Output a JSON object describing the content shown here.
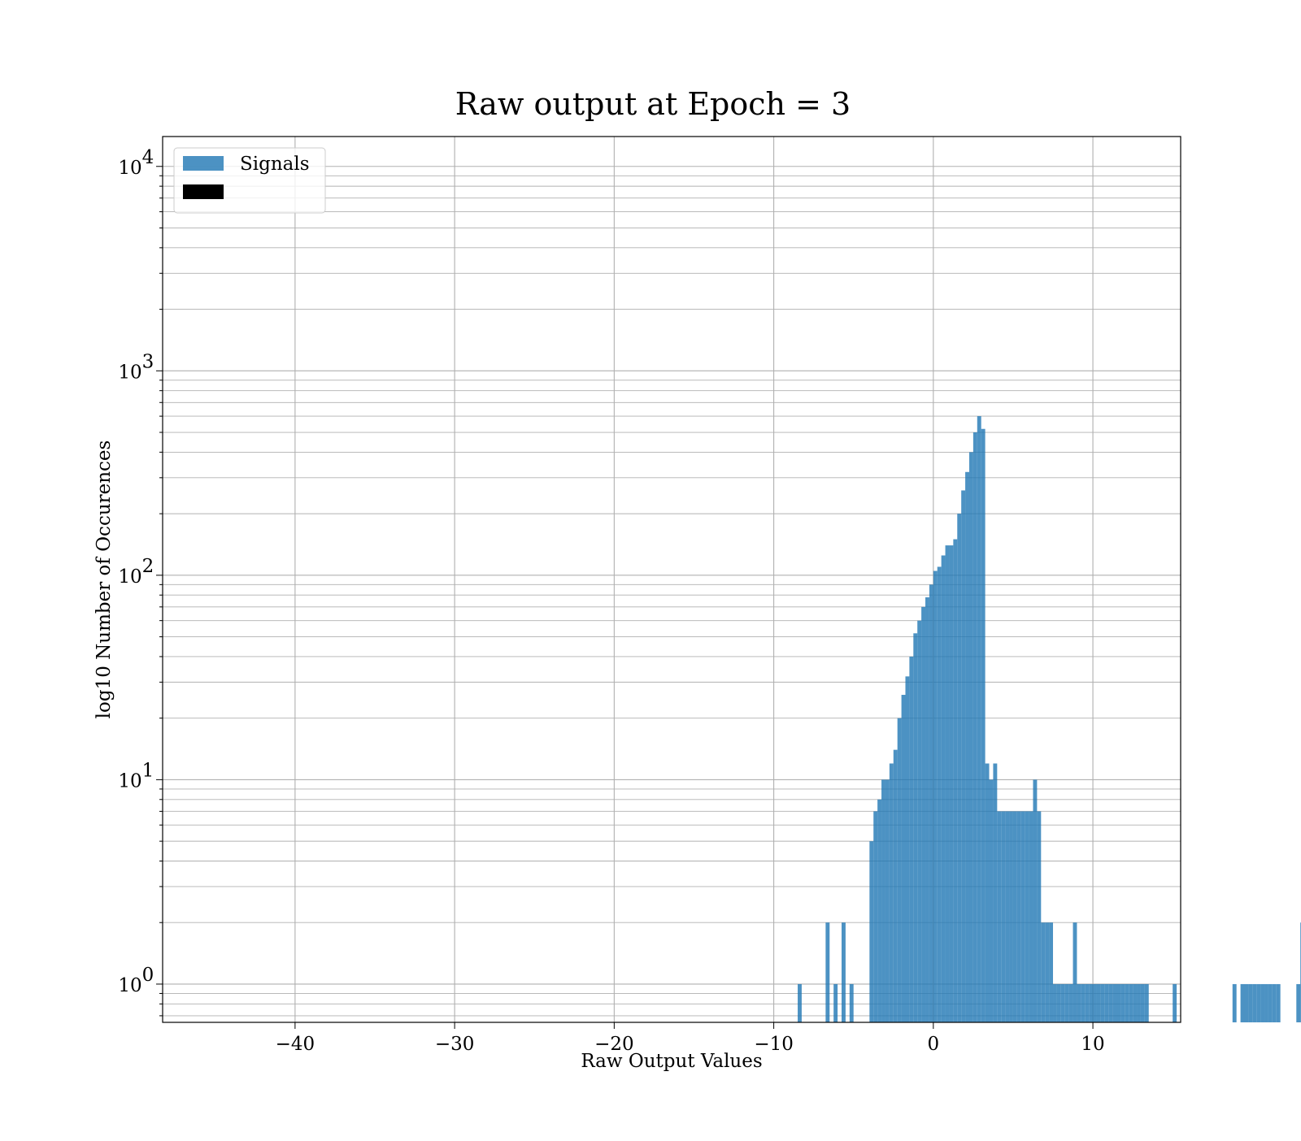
{
  "chart_data": {
    "type": "histogram",
    "title": "Raw output at Epoch = 3",
    "xlabel": "Raw Output Values",
    "ylabel": "log10 Number of Occurences",
    "xlim": [
      -48.3,
      15.5
    ],
    "ylim": [
      0.65,
      14000
    ],
    "yscale": "log",
    "grid": true,
    "legend_position": "upper-left",
    "x_ticks": [
      {
        "value": -40,
        "label": "−40"
      },
      {
        "value": -30,
        "label": "−30"
      },
      {
        "value": -20,
        "label": "−20"
      },
      {
        "value": -10,
        "label": "−10"
      },
      {
        "value": 0,
        "label": "0"
      },
      {
        "value": 10,
        "label": "10"
      }
    ],
    "y_ticks": [
      {
        "value": 1,
        "base": "10",
        "exp": "0"
      },
      {
        "value": 10,
        "base": "10",
        "exp": "1"
      },
      {
        "value": 100,
        "base": "10",
        "exp": "2"
      },
      {
        "value": 1000,
        "base": "10",
        "exp": "3"
      },
      {
        "value": 10000,
        "base": "10",
        "exp": "4"
      }
    ],
    "series": [
      {
        "name": "Signals",
        "color": "#1f77b4",
        "opacity": 0.8,
        "bin_edges_start": -8.5,
        "bin_width": 0.25,
        "counts": [
          1,
          0,
          0,
          0,
          0,
          0,
          0,
          2,
          0,
          1,
          0,
          2,
          0,
          1,
          0,
          0,
          0,
          0,
          5,
          7,
          8,
          10,
          10,
          12,
          14,
          20,
          26,
          32,
          40,
          52,
          60,
          70,
          78,
          90,
          105,
          110,
          125,
          140,
          140,
          150,
          200,
          260,
          320,
          400,
          500,
          600,
          520,
          12,
          10,
          12,
          7,
          7,
          7,
          7,
          7,
          7,
          7,
          7,
          7,
          10,
          7,
          2,
          2,
          2,
          1,
          1,
          1,
          1,
          1,
          2,
          1,
          1,
          1,
          1,
          1,
          1,
          1,
          1,
          1,
          1,
          1,
          1,
          1,
          1,
          1,
          1,
          1,
          1,
          0,
          0,
          0,
          0,
          0,
          0,
          1,
          0,
          0,
          0,
          0,
          0,
          0,
          0,
          0,
          0,
          0,
          0,
          0,
          0,
          0,
          1,
          0,
          1,
          1,
          1,
          1,
          1,
          1,
          1,
          1,
          1,
          1,
          0,
          0,
          0,
          0,
          1,
          2,
          0,
          0,
          0
        ],
        "note_hidden": ""
      }
    ]
  }
}
